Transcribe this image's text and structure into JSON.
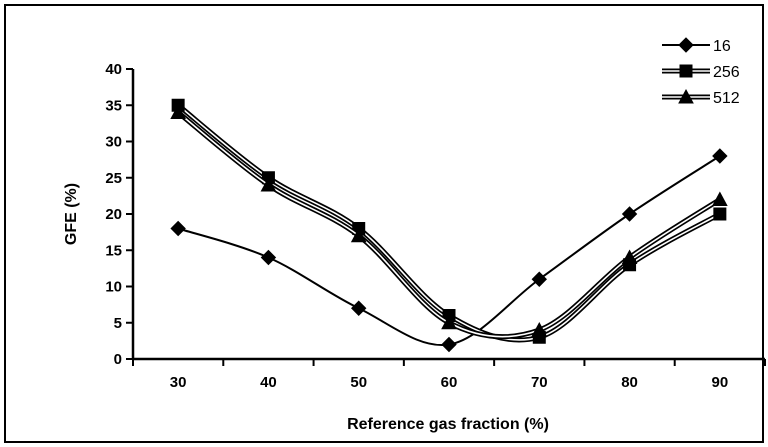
{
  "chart_data": {
    "type": "line",
    "x": [
      30,
      40,
      50,
      60,
      70,
      80,
      90
    ],
    "xlabel": "Reference gas fraction (%)",
    "ylabel": "GFE (%)",
    "ylim": [
      0,
      40
    ],
    "yticks": [
      "0",
      "5",
      "10",
      "15",
      "20",
      "25",
      "30",
      "35",
      "40"
    ],
    "xticks": [
      "30",
      "40",
      "50",
      "60",
      "70",
      "80",
      "90"
    ],
    "grid": false,
    "legend_position": "top-right",
    "smooth": true,
    "series": [
      {
        "name": "16",
        "marker": "diamond",
        "line_style": "single",
        "values": [
          18,
          14,
          7,
          2,
          11,
          20,
          28
        ]
      },
      {
        "name": "256",
        "marker": "square",
        "line_style": "double",
        "values": [
          35,
          25,
          18,
          6,
          3,
          13,
          20
        ]
      },
      {
        "name": "512",
        "marker": "triangle",
        "line_style": "double",
        "values": [
          34,
          24,
          17,
          5,
          4,
          14,
          22
        ]
      }
    ],
    "colors": {
      "line": "#000000",
      "background": "#ffffff"
    }
  }
}
